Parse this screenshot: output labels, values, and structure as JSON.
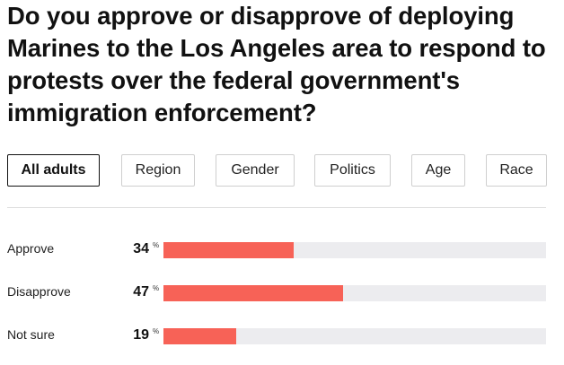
{
  "title": "Do you approve or disapprove of deploying Marines to the Los Angeles area to respond to protests over the federal government's immigration enforcement?",
  "tabs": [
    {
      "label": "All adults",
      "active": true
    },
    {
      "label": "Region",
      "active": false
    },
    {
      "label": "Gender",
      "active": false
    },
    {
      "label": "Politics",
      "active": false
    },
    {
      "label": "Age",
      "active": false
    },
    {
      "label": "Race",
      "active": false
    }
  ],
  "colors": {
    "bar": "#f76257",
    "track": "#ececef",
    "active_border": "#111111",
    "tab_border": "#cfcfcf"
  },
  "chart_data": {
    "type": "bar",
    "orientation": "horizontal",
    "unit": "%",
    "categories": [
      "Approve",
      "Disapprove",
      "Not sure"
    ],
    "values": [
      34,
      47,
      19
    ],
    "xlim": [
      0,
      100
    ],
    "grid": false,
    "legend": "none"
  }
}
